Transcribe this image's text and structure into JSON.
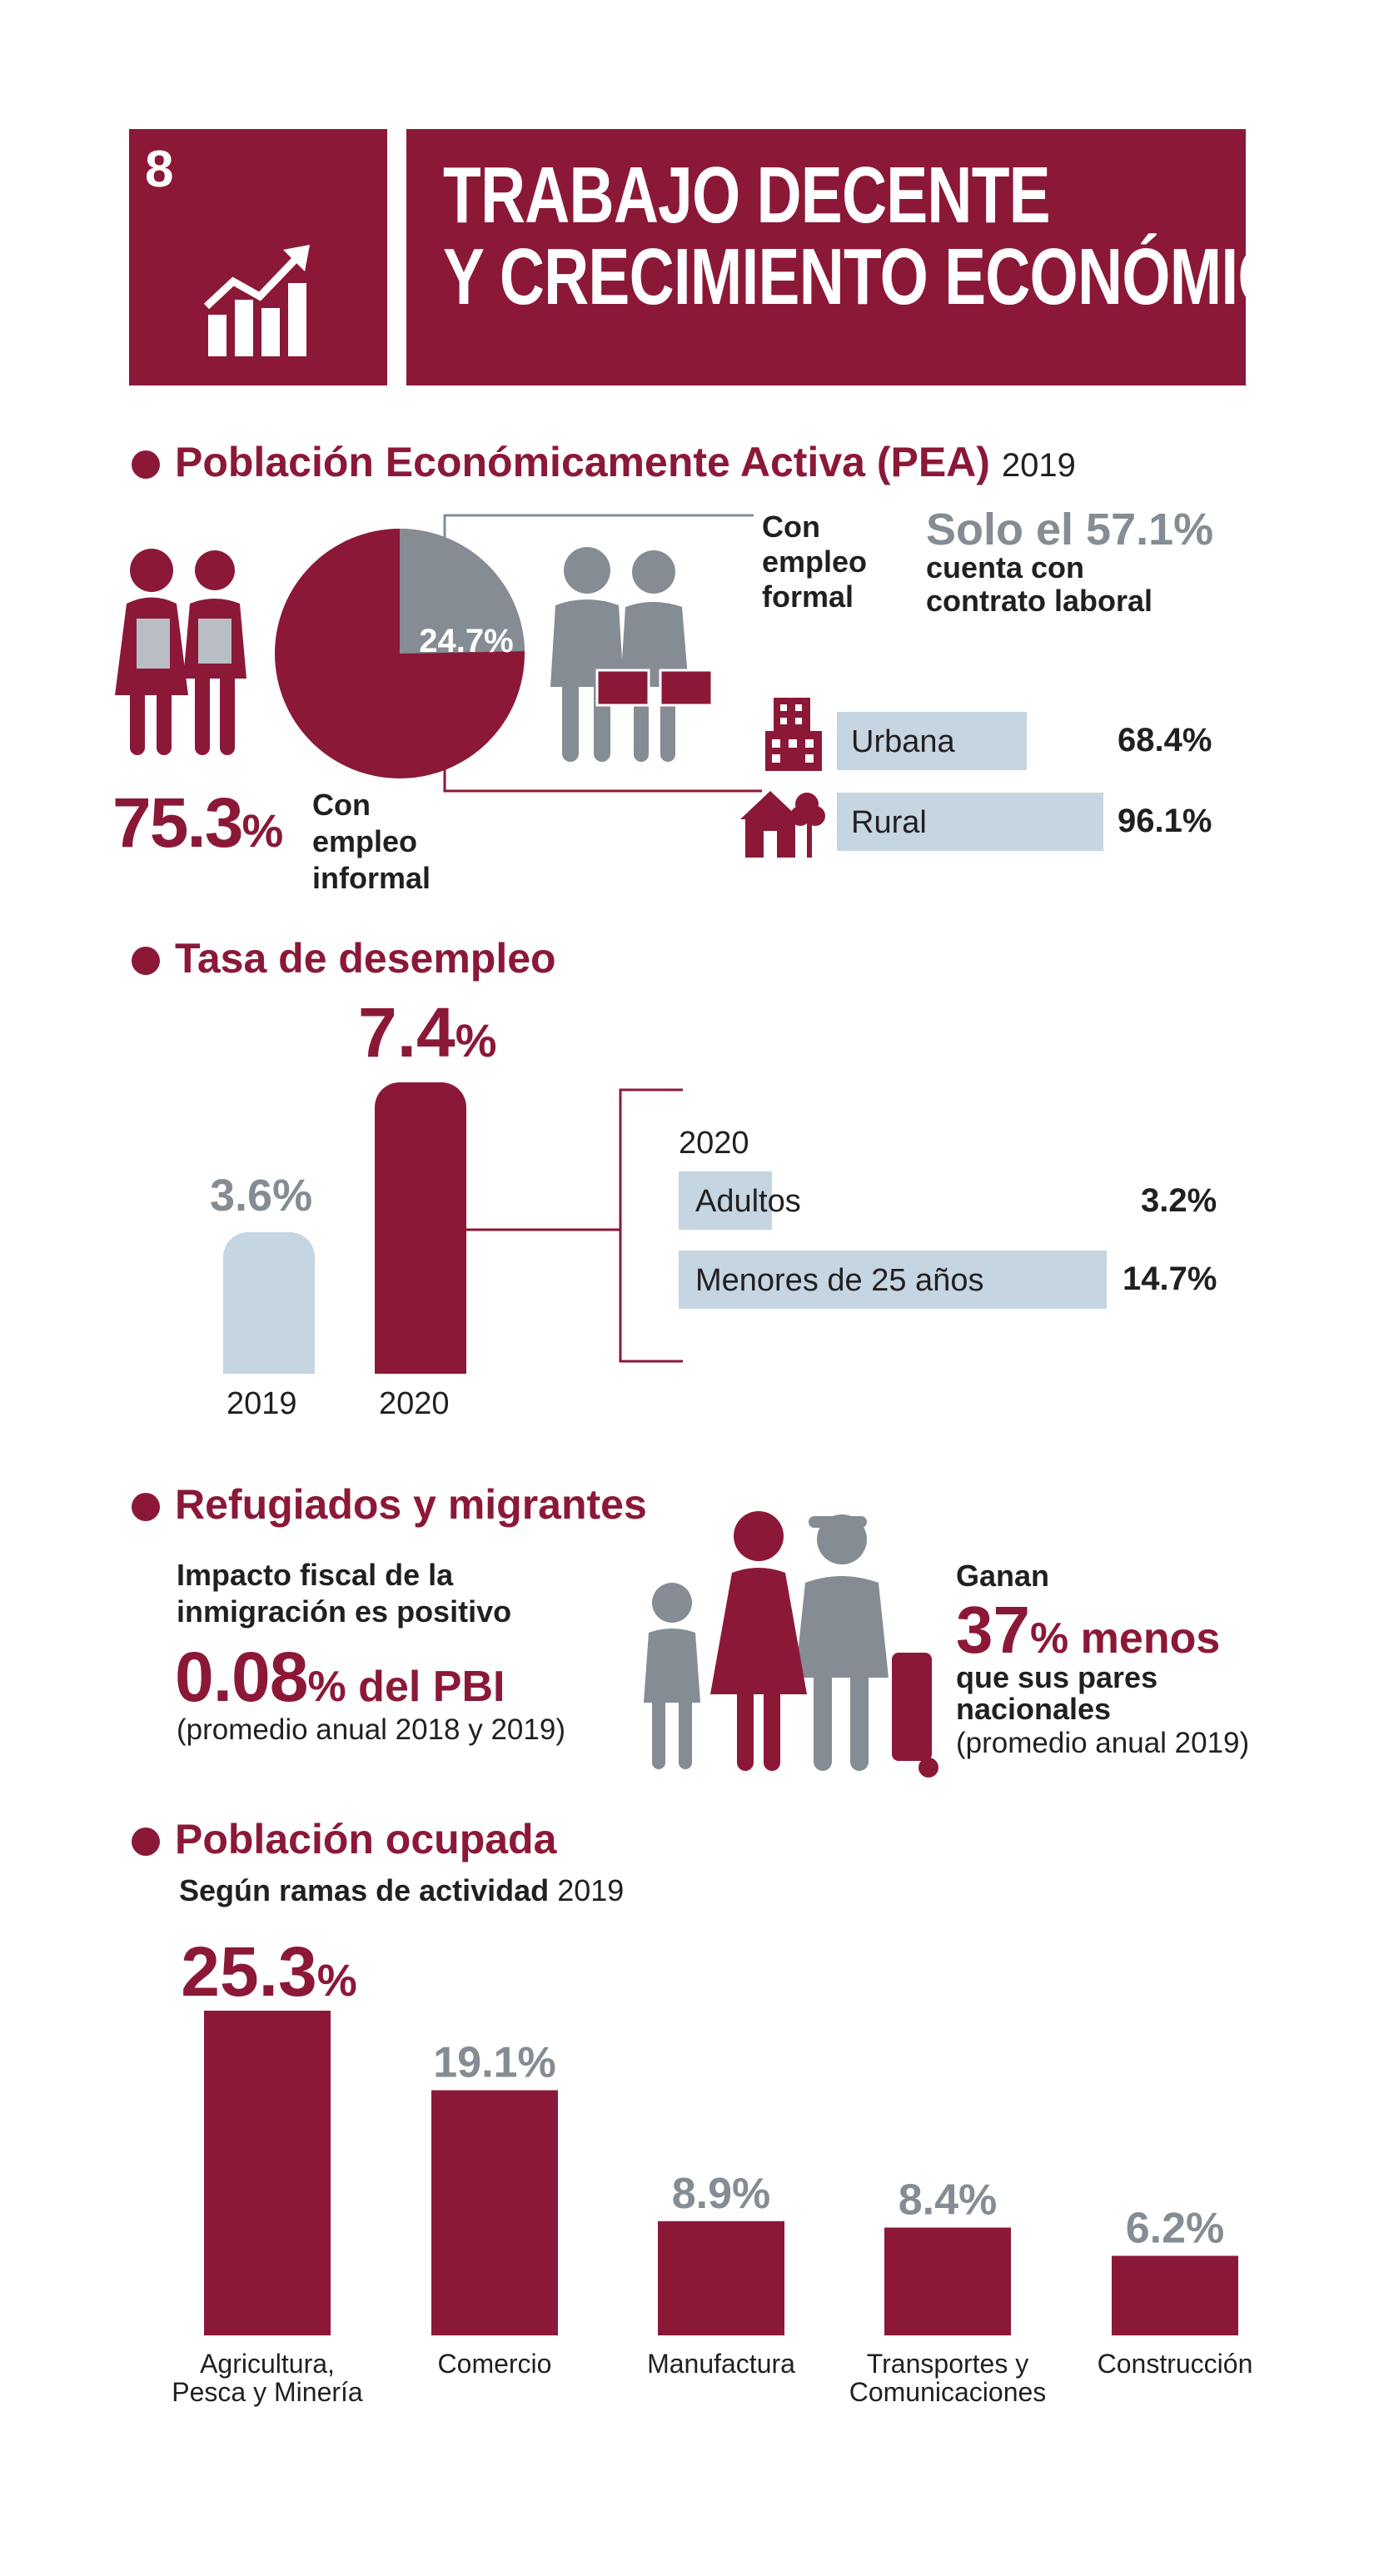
{
  "header": {
    "goal_number": "8",
    "title_line1": "TRABAJO DECENTE",
    "title_line2": "Y CRECIMIENTO ECONÓMICO",
    "icon": "growth-chart-icon"
  },
  "colors": {
    "maroon": "#8c1838",
    "gray": "#858c94",
    "light_blue": "#c5d5e2",
    "dark": "#231f20"
  },
  "pea": {
    "title": "Población Económicamente Activa (PEA)",
    "year": "2019",
    "informal_value": "75.3",
    "informal_pct_sign": "%",
    "informal_label": [
      "Con",
      "empleo",
      "informal"
    ],
    "formal_slice_label": "24.7%",
    "formal_label": [
      "Con",
      "empleo",
      "formal"
    ],
    "contract_highlight": "Solo el 57.1%",
    "contract_line2": "cuenta con",
    "contract_line3": "contrato laboral",
    "urban_label": "Urbana",
    "urban_value": "68.4%",
    "rural_label": "Rural",
    "rural_value": "96.1%"
  },
  "unemployment": {
    "title": "Tasa de desempleo",
    "v2019": "3.6%",
    "v2020_num": "7.4",
    "v2020_sign": "%",
    "x2019": "2019",
    "x2020": "2020",
    "breakdown_year": "2020",
    "adults_label": "Adultos",
    "adults_value": "3.2%",
    "youth_label": "Menores de 25 años",
    "youth_value": "14.7%"
  },
  "migrants": {
    "title": "Refugiados y migrantes",
    "fiscal_line1": "Impacto fiscal de la",
    "fiscal_line2": "inmigración es positivo",
    "pbi_num": "0.08",
    "pbi_rest": "% del PBI",
    "pbi_note": "(promedio anual 2018 y 2019)",
    "earn_line1": "Ganan",
    "earn_num": "37",
    "earn_rest": "% menos",
    "earn_line3": "que sus pares",
    "earn_line4": "nacionales",
    "earn_note": "(promedio anual 2019)"
  },
  "occupied": {
    "title": "Población ocupada",
    "subtitle_bold": "Según ramas de actividad",
    "subtitle_year": "2019"
  },
  "chart_data": [
    {
      "type": "pie",
      "title": "Población Económicamente Activa (PEA)",
      "categories": [
        "Con empleo informal",
        "Con empleo formal"
      ],
      "values": [
        75.3,
        24.7
      ]
    },
    {
      "type": "bar",
      "title": "Tasa de desempleo",
      "categories": [
        "2019",
        "2020"
      ],
      "values": [
        3.6,
        7.4
      ]
    },
    {
      "type": "bar",
      "title": "Con empleo formal — cuenta con contrato laboral",
      "categories": [
        "Urbana",
        "Rural"
      ],
      "values": [
        68.4,
        96.1
      ]
    },
    {
      "type": "bar",
      "title": "2020",
      "categories": [
        "Adultos",
        "Menores de 25 años"
      ],
      "values": [
        3.2,
        14.7
      ]
    },
    {
      "type": "bar",
      "title": "Población ocupada",
      "categories": [
        "Agricultura, Pesca y Minería",
        "Comercio",
        "Manufactura",
        "Transportes y Comunicaciones",
        "Construcción"
      ],
      "category_lines": [
        [
          "Agricultura,",
          "Pesca y Minería"
        ],
        [
          "Comercio"
        ],
        [
          "Manufactura"
        ],
        [
          "Transportes y",
          "Comunicaciones"
        ],
        [
          "Construcción"
        ]
      ],
      "values": [
        25.3,
        19.1,
        8.9,
        8.4,
        6.2
      ],
      "value_labels": [
        "25.3",
        "19.1%",
        "8.9%",
        "8.4%",
        "6.2%"
      ]
    }
  ]
}
